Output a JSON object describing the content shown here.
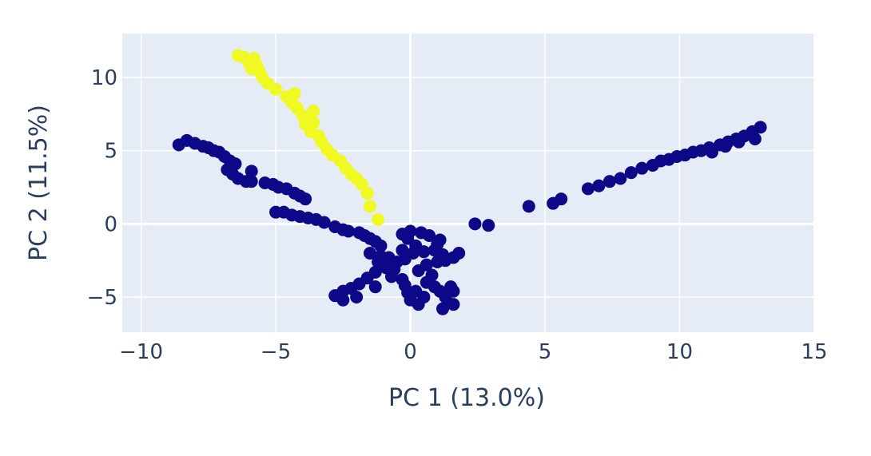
{
  "chart_data": {
    "type": "scatter",
    "xlabel": "PC 1 (13.0%)",
    "ylabel": "PC 2 (11.5%)",
    "xlim": [
      -10.7,
      15
    ],
    "ylim": [
      -7.4,
      13.0
    ],
    "x_ticks": [
      {
        "value": -10,
        "label": "−10"
      },
      {
        "value": -5,
        "label": "−5"
      },
      {
        "value": 0,
        "label": "0"
      },
      {
        "value": 5,
        "label": "5"
      },
      {
        "value": 10,
        "label": "10"
      },
      {
        "value": 15,
        "label": "15"
      }
    ],
    "y_ticks": [
      {
        "value": -5,
        "label": "−5"
      },
      {
        "value": 0,
        "label": "0"
      },
      {
        "value": 5,
        "label": "5"
      },
      {
        "value": 10,
        "label": "10"
      }
    ],
    "grid": true,
    "legend": "none",
    "plot_background": "#e5ecf6",
    "grid_color": "#ffffff",
    "series": [
      {
        "color": "#0d0887",
        "points": [
          [
            -8.6,
            5.4
          ],
          [
            -8.3,
            5.7
          ],
          [
            -8.0,
            5.5
          ],
          [
            -7.7,
            5.3
          ],
          [
            -7.5,
            5.2
          ],
          [
            -7.3,
            5.0
          ],
          [
            -7.1,
            4.9
          ],
          [
            -6.9,
            4.6
          ],
          [
            -6.7,
            4.3
          ],
          [
            -6.5,
            4.1
          ],
          [
            -6.8,
            3.7
          ],
          [
            -6.6,
            3.4
          ],
          [
            -6.4,
            3.1
          ],
          [
            -6.1,
            2.9
          ],
          [
            -5.9,
            3.6
          ],
          [
            -5.9,
            2.9
          ],
          [
            -5.4,
            2.8
          ],
          [
            -5.1,
            2.7
          ],
          [
            -4.9,
            2.5
          ],
          [
            -4.6,
            2.4
          ],
          [
            -4.3,
            2.1
          ],
          [
            -4.1,
            1.9
          ],
          [
            -3.9,
            1.7
          ],
          [
            -5.0,
            0.8
          ],
          [
            -4.7,
            0.8
          ],
          [
            -4.4,
            0.6
          ],
          [
            -4.1,
            0.5
          ],
          [
            -3.8,
            0.4
          ],
          [
            -3.5,
            0.3
          ],
          [
            -3.2,
            0.1
          ],
          [
            -2.8,
            -0.2
          ],
          [
            -2.5,
            -0.4
          ],
          [
            -2.3,
            -0.5
          ],
          [
            -1.9,
            -0.6
          ],
          [
            -1.7,
            -0.8
          ],
          [
            -1.5,
            -1.0
          ],
          [
            -1.3,
            -1.2
          ],
          [
            -1.1,
            -1.5
          ],
          [
            -1.5,
            -2.0
          ],
          [
            -1.1,
            -2.2
          ],
          [
            -1.2,
            -2.6
          ],
          [
            -0.8,
            -2.3
          ],
          [
            -0.5,
            -2.6
          ],
          [
            -0.2,
            -2.4
          ],
          [
            -0.9,
            -3.0
          ],
          [
            -0.6,
            -3.1
          ],
          [
            -1.3,
            -3.3
          ],
          [
            -1.6,
            -3.7
          ],
          [
            -1.9,
            -4.1
          ],
          [
            -2.2,
            -4.4
          ],
          [
            -2.5,
            -4.6
          ],
          [
            -2.8,
            -4.9
          ],
          [
            -2.5,
            -5.2
          ],
          [
            -2.0,
            -5.0
          ],
          [
            -1.3,
            -4.3
          ],
          [
            -0.7,
            -3.6
          ],
          [
            -0.3,
            -3.8
          ],
          [
            -0.2,
            -4.2
          ],
          [
            -0.1,
            -4.7
          ],
          [
            0.0,
            -5.2
          ],
          [
            0.3,
            -5.5
          ],
          [
            0.5,
            -5.0
          ],
          [
            0.2,
            -4.6
          ],
          [
            0.6,
            -4.0
          ],
          [
            0.9,
            -4.3
          ],
          [
            1.1,
            -4.6
          ],
          [
            1.3,
            -5.0
          ],
          [
            1.4,
            -5.4
          ],
          [
            1.2,
            -5.8
          ],
          [
            1.6,
            -5.5
          ],
          [
            1.6,
            -4.6
          ],
          [
            1.5,
            -4.3
          ],
          [
            0.8,
            -3.5
          ],
          [
            0.3,
            -3.2
          ],
          [
            0.6,
            -2.8
          ],
          [
            1.0,
            -2.6
          ],
          [
            1.3,
            -2.5
          ],
          [
            1.6,
            -2.3
          ],
          [
            1.8,
            -2.0
          ],
          [
            1.2,
            -2.1
          ],
          [
            0.9,
            -1.8
          ],
          [
            1.0,
            -1.4
          ],
          [
            1.1,
            -1.1
          ],
          [
            0.7,
            -0.8
          ],
          [
            0.4,
            -0.6
          ],
          [
            0.0,
            -0.5
          ],
          [
            -0.3,
            -0.7
          ],
          [
            -0.1,
            -1.0
          ],
          [
            0.2,
            -1.5
          ],
          [
            0.5,
            -1.9
          ],
          [
            0.1,
            -2.0
          ],
          [
            -0.3,
            -1.8
          ],
          [
            2.4,
            0.0
          ],
          [
            2.9,
            -0.1
          ],
          [
            4.4,
            1.2
          ],
          [
            5.3,
            1.4
          ],
          [
            5.6,
            1.7
          ],
          [
            6.6,
            2.4
          ],
          [
            7.0,
            2.6
          ],
          [
            7.4,
            2.9
          ],
          [
            7.8,
            3.1
          ],
          [
            8.2,
            3.5
          ],
          [
            8.6,
            3.8
          ],
          [
            9.0,
            4.0
          ],
          [
            9.3,
            4.3
          ],
          [
            9.6,
            4.4
          ],
          [
            9.9,
            4.6
          ],
          [
            10.2,
            4.7
          ],
          [
            10.5,
            4.9
          ],
          [
            10.8,
            5.0
          ],
          [
            11.1,
            5.2
          ],
          [
            11.5,
            5.4
          ],
          [
            11.8,
            5.6
          ],
          [
            12.1,
            5.8
          ],
          [
            12.4,
            6.0
          ],
          [
            12.7,
            6.3
          ],
          [
            13.0,
            6.6
          ],
          [
            12.8,
            5.8
          ],
          [
            12.2,
            5.6
          ],
          [
            11.7,
            5.3
          ],
          [
            11.2,
            4.9
          ]
        ]
      },
      {
        "color": "#f0f921",
        "points": [
          [
            -6.2,
            11.4
          ],
          [
            -6.0,
            11.0
          ],
          [
            -5.9,
            10.6
          ],
          [
            -5.6,
            10.4
          ],
          [
            -5.5,
            10.0
          ],
          [
            -5.3,
            9.6
          ],
          [
            -5.0,
            9.2
          ],
          [
            -4.6,
            8.7
          ],
          [
            -4.4,
            8.3
          ],
          [
            -4.2,
            7.9
          ],
          [
            -4.0,
            7.4
          ],
          [
            -3.8,
            7.2
          ],
          [
            -3.6,
            6.9
          ],
          [
            -3.9,
            6.8
          ],
          [
            -3.7,
            6.3
          ],
          [
            -3.4,
            6.0
          ],
          [
            -3.3,
            5.6
          ],
          [
            -3.1,
            5.1
          ],
          [
            -2.9,
            4.7
          ],
          [
            -2.6,
            4.3
          ],
          [
            -2.4,
            3.8
          ],
          [
            -2.2,
            3.4
          ],
          [
            -2.0,
            3.1
          ],
          [
            -1.8,
            2.7
          ],
          [
            -1.6,
            2.1
          ],
          [
            -1.5,
            1.2
          ],
          [
            -1.2,
            0.3
          ],
          [
            -3.6,
            7.7
          ],
          [
            -4.3,
            8.9
          ],
          [
            -5.8,
            11.3
          ],
          [
            -6.4,
            11.5
          ],
          [
            -5.7,
            10.8
          ]
        ]
      }
    ]
  }
}
